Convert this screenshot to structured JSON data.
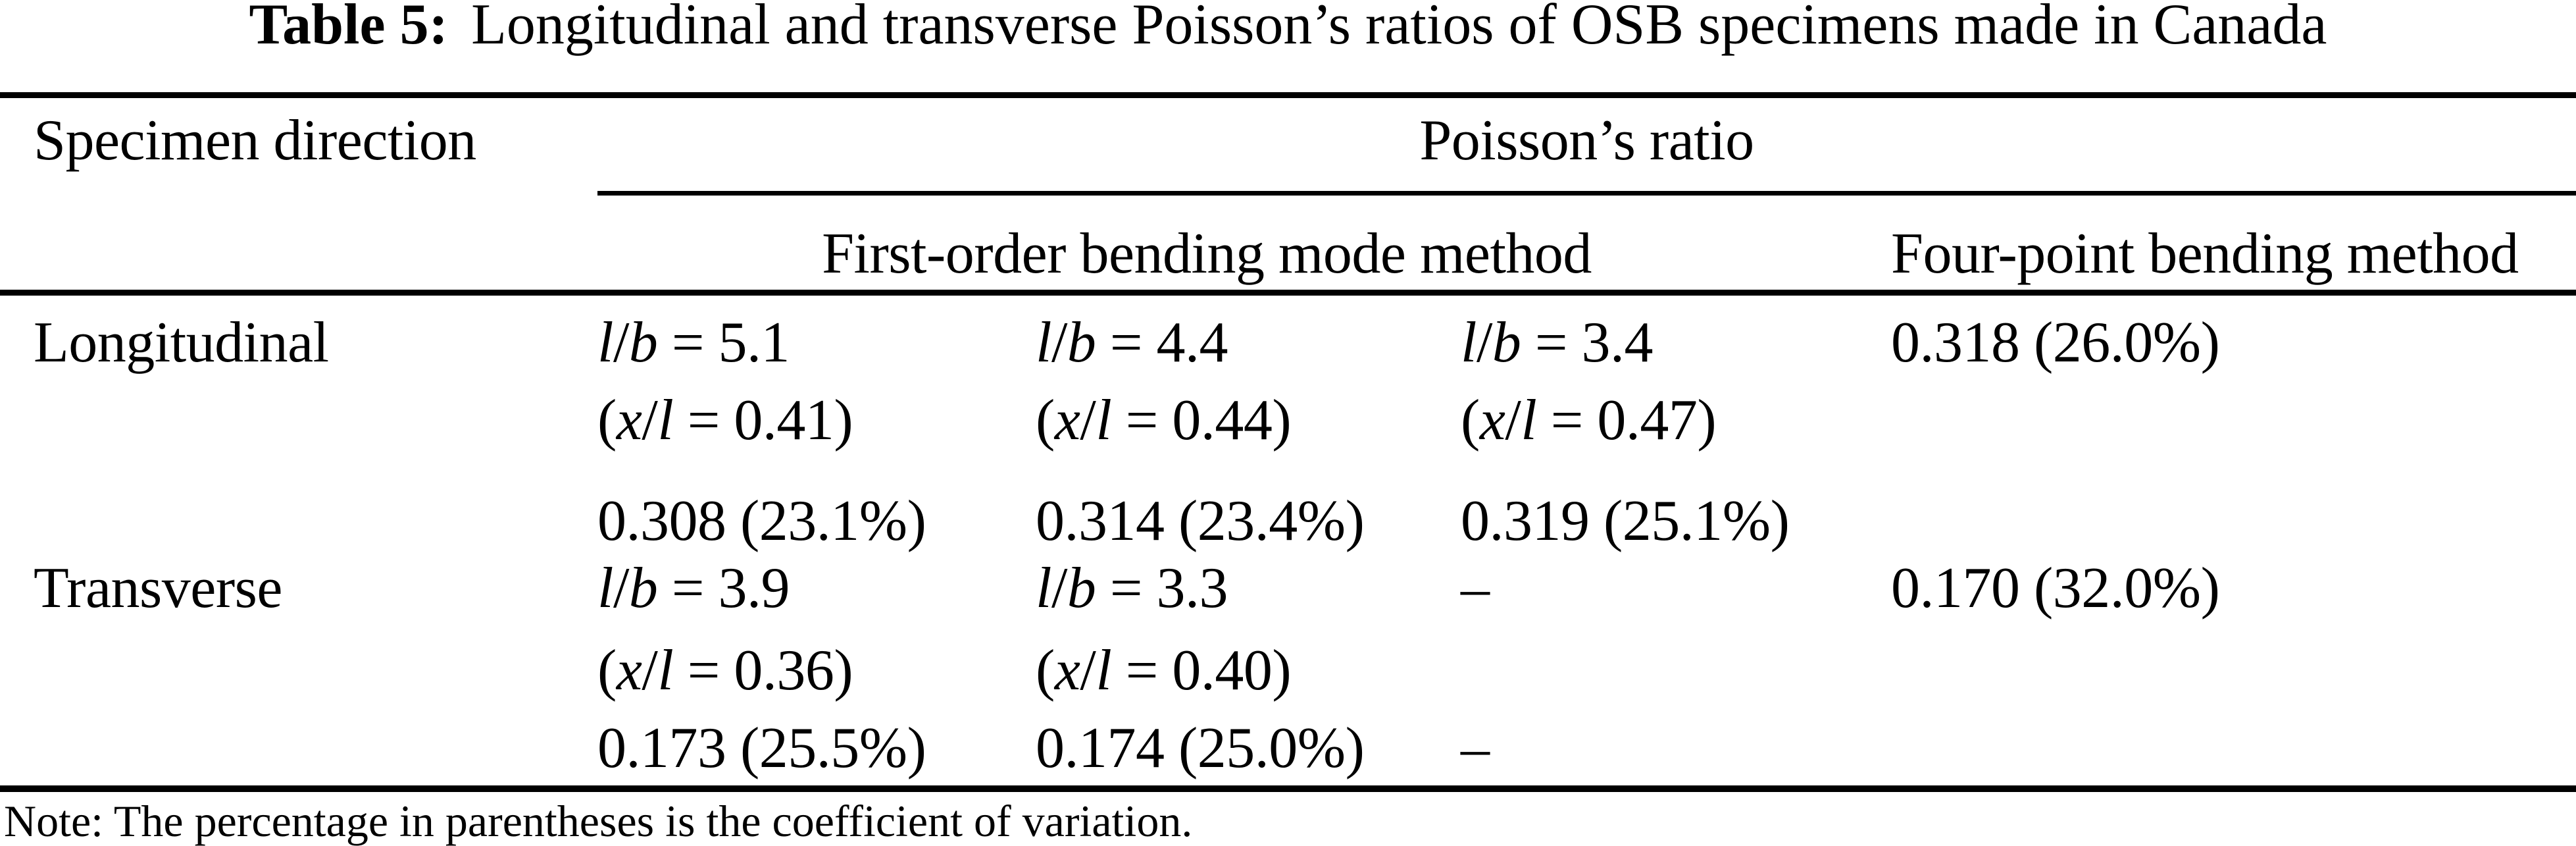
{
  "colors": {
    "text": "#000000",
    "background": "#ffffff"
  },
  "title": {
    "label": "Table 5:",
    "text": "Longitudinal and transverse Poisson’s ratios of OSB specimens made in Canada"
  },
  "table": {
    "col1_header": "Specimen direction",
    "group_header": "Poisson’s ratio",
    "method1_header": "First-order bending mode method",
    "method2_header": "Four-point bending method",
    "rows": [
      {
        "direction": "Longitudinal",
        "fobm": [
          {
            "lb": "l/b = 5.1",
            "xl": "(x/l = 0.41)",
            "value": "0.308 (23.1%)"
          },
          {
            "lb": "l/b = 4.4",
            "xl": "(x/l = 0.44)",
            "value": "0.314 (23.4%)"
          },
          {
            "lb": "l/b = 3.4",
            "xl": "(x/l = 0.47)",
            "value": "0.319 (25.1%)"
          }
        ],
        "four_point": "0.318 (26.0%)"
      },
      {
        "direction": "Transverse",
        "fobm": [
          {
            "lb": "l/b = 3.9",
            "xl": "(x/l = 0.36)",
            "value": "0.173 (25.5%)"
          },
          {
            "lb": "l/b = 3.3",
            "xl": "(x/l = 0.40)",
            "value": "0.174 (25.0%)"
          },
          {
            "lb": "–",
            "xl": "",
            "value": "–"
          }
        ],
        "four_point": "0.170 (32.0%)"
      }
    ]
  },
  "note": "Note: The percentage in parentheses is the coefficient of variation."
}
